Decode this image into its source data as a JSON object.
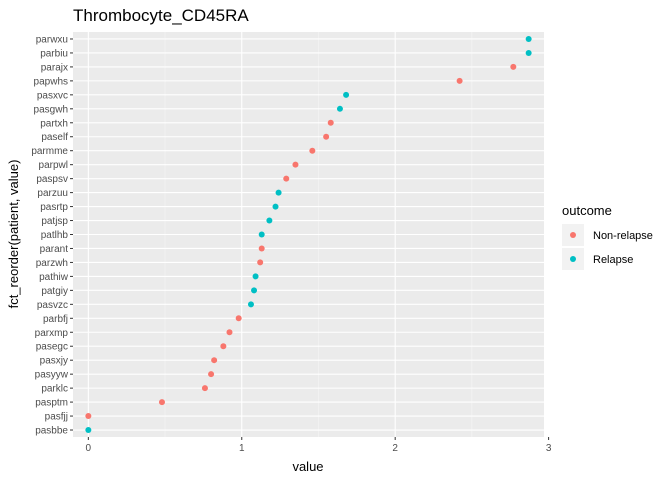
{
  "chart_data": {
    "type": "scatter",
    "title": "Thrombocyte_CD45RA",
    "xlabel": "value",
    "ylabel": "fct_reorder(patient, value)",
    "xlim": [
      -0.1,
      2.97
    ],
    "x_ticks": [
      "0",
      "1",
      "2",
      "3"
    ],
    "grid": true,
    "legend": {
      "title": "outcome",
      "placement": "right",
      "entries": [
        {
          "name": "Non-relapse",
          "color": "#F8766D"
        },
        {
          "name": "Relapse",
          "color": "#00BFC4"
        }
      ]
    },
    "categories": [
      "pasbbe",
      "pasfjj",
      "pasptm",
      "parklc",
      "pasyyw",
      "pasxjy",
      "pasegc",
      "parxmp",
      "parbfj",
      "pasvzc",
      "patgiy",
      "pathiw",
      "parzwh",
      "parant",
      "patlhb",
      "patjsp",
      "pasrtp",
      "parzuu",
      "paspsv",
      "parpwl",
      "parmme",
      "paself",
      "partxh",
      "pasgwh",
      "pasxvc",
      "papwhs",
      "parajx",
      "parbiu",
      "parwxu"
    ],
    "points": [
      {
        "patient": "pasbbe",
        "value": 0.0,
        "outcome": "Relapse"
      },
      {
        "patient": "pasfjj",
        "value": 0.0,
        "outcome": "Non-relapse"
      },
      {
        "patient": "pasptm",
        "value": 0.48,
        "outcome": "Non-relapse"
      },
      {
        "patient": "parklc",
        "value": 0.76,
        "outcome": "Non-relapse"
      },
      {
        "patient": "pasyyw",
        "value": 0.8,
        "outcome": "Non-relapse"
      },
      {
        "patient": "pasxjy",
        "value": 0.82,
        "outcome": "Non-relapse"
      },
      {
        "patient": "pasegc",
        "value": 0.88,
        "outcome": "Non-relapse"
      },
      {
        "patient": "parxmp",
        "value": 0.92,
        "outcome": "Non-relapse"
      },
      {
        "patient": "parbfj",
        "value": 0.98,
        "outcome": "Non-relapse"
      },
      {
        "patient": "pasvzc",
        "value": 1.06,
        "outcome": "Relapse"
      },
      {
        "patient": "patgiy",
        "value": 1.08,
        "outcome": "Relapse"
      },
      {
        "patient": "pathiw",
        "value": 1.09,
        "outcome": "Relapse"
      },
      {
        "patient": "parzwh",
        "value": 1.12,
        "outcome": "Non-relapse"
      },
      {
        "patient": "parant",
        "value": 1.13,
        "outcome": "Non-relapse"
      },
      {
        "patient": "patlhb",
        "value": 1.13,
        "outcome": "Relapse"
      },
      {
        "patient": "patjsp",
        "value": 1.18,
        "outcome": "Relapse"
      },
      {
        "patient": "pasrtp",
        "value": 1.22,
        "outcome": "Relapse"
      },
      {
        "patient": "parzuu",
        "value": 1.24,
        "outcome": "Relapse"
      },
      {
        "patient": "paspsv",
        "value": 1.29,
        "outcome": "Non-relapse"
      },
      {
        "patient": "parpwl",
        "value": 1.35,
        "outcome": "Non-relapse"
      },
      {
        "patient": "parmme",
        "value": 1.46,
        "outcome": "Non-relapse"
      },
      {
        "patient": "paself",
        "value": 1.55,
        "outcome": "Non-relapse"
      },
      {
        "patient": "partxh",
        "value": 1.58,
        "outcome": "Non-relapse"
      },
      {
        "patient": "pasgwh",
        "value": 1.64,
        "outcome": "Relapse"
      },
      {
        "patient": "pasxvc",
        "value": 1.68,
        "outcome": "Relapse"
      },
      {
        "patient": "papwhs",
        "value": 2.42,
        "outcome": "Non-relapse"
      },
      {
        "patient": "parajx",
        "value": 2.77,
        "outcome": "Non-relapse"
      },
      {
        "patient": "parbiu",
        "value": 2.87,
        "outcome": "Relapse"
      },
      {
        "patient": "parwxu",
        "value": 2.87,
        "outcome": "Relapse"
      }
    ]
  }
}
